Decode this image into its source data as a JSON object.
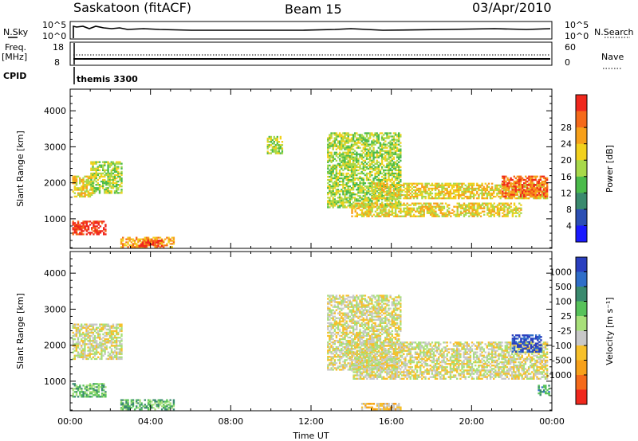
{
  "header": {
    "title": "Saskatoon (fitACF)",
    "beam": "Beam 15",
    "date": "03/Apr/2010"
  },
  "housekeeping": {
    "nsky_label": "N.Sky",
    "nsearch_label": "N.Search",
    "noise_ticks_left": [
      "10^5",
      "10^0"
    ],
    "noise_ticks_right": [
      "10^5",
      "10^0"
    ],
    "freq_label_top": "Freq.",
    "freq_label_bottom": "[MHz]",
    "freq_ticks": [
      "18",
      "8"
    ],
    "nave_label": "Nave",
    "nave_ticks": [
      "60",
      "0"
    ],
    "cpid_label": "CPID",
    "cpid_text": "themis 3300"
  },
  "chart_data": [
    {
      "type": "heatmap",
      "name": "power",
      "ylabel": "Slant Range [km]",
      "xlabel": "",
      "x_ticks": [
        "00:00",
        "04:00",
        "08:00",
        "12:00",
        "16:00",
        "20:00",
        "00:00"
      ],
      "y_ticks": [
        1000,
        2000,
        3000,
        4000
      ],
      "xlim_hours": [
        0,
        24
      ],
      "ylim_km": [
        180,
        4600
      ],
      "colorbar": {
        "label": "Power [dB]",
        "ticks": [
          "4",
          "8",
          "12",
          "16",
          "20",
          "24",
          "28"
        ],
        "colors": [
          "#1a1aff",
          "#2c4fb4",
          "#3a8a6e",
          "#4bbb4b",
          "#a8d94a",
          "#f2d11d",
          "#f7a01a",
          "#f56a1a",
          "#f0281d"
        ]
      },
      "regions": [
        {
          "t0": 0.1,
          "t1": 1.8,
          "r0": 550,
          "r1": 950,
          "level": 8
        },
        {
          "t0": 0.1,
          "t1": 1.2,
          "r0": 1600,
          "r1": 2200,
          "level": 5
        },
        {
          "t0": 1.0,
          "t1": 2.6,
          "r0": 1700,
          "r1": 2600,
          "level": 4
        },
        {
          "t0": 2.5,
          "t1": 5.2,
          "r0": 200,
          "r1": 500,
          "level": 6
        },
        {
          "t0": 3.4,
          "t1": 4.6,
          "r0": 220,
          "r1": 420,
          "level": 8
        },
        {
          "t0": 12.8,
          "t1": 16.5,
          "r0": 1300,
          "r1": 3400,
          "level": 4
        },
        {
          "t0": 14.0,
          "t1": 22.5,
          "r0": 1050,
          "r1": 1450,
          "level": 5
        },
        {
          "t0": 15.0,
          "t1": 23.8,
          "r0": 1550,
          "r1": 2000,
          "level": 5
        },
        {
          "t0": 21.5,
          "t1": 23.8,
          "r0": 1600,
          "r1": 2200,
          "level": 7
        },
        {
          "t0": 9.8,
          "t1": 10.6,
          "r0": 2800,
          "r1": 3300,
          "level": 4
        }
      ]
    },
    {
      "type": "heatmap",
      "name": "velocity",
      "ylabel": "Slant Range [km]",
      "xlabel": "Time UT",
      "x_ticks": [
        "00:00",
        "04:00",
        "08:00",
        "12:00",
        "16:00",
        "20:00",
        "00:00"
      ],
      "y_ticks": [
        1000,
        2000,
        3000,
        4000
      ],
      "xlim_hours": [
        0,
        24
      ],
      "ylim_km": [
        180,
        4600
      ],
      "colorbar": {
        "label": "Velocity [m s⁻¹]",
        "ticks": [
          "1000",
          "500",
          "100",
          "25",
          "-25",
          "-100",
          "-500",
          "-1000"
        ],
        "colors": [
          "#2a3fbf",
          "#2f6ec9",
          "#3a8a6e",
          "#57c25a",
          "#a8e07a",
          "#c8c8c8",
          "#f7c02a",
          "#f7a01a",
          "#f56a1a",
          "#f0281d"
        ]
      },
      "regions": [
        {
          "t0": 0.1,
          "t1": 1.8,
          "r0": 550,
          "r1": 950,
          "level": 3
        },
        {
          "t0": 0.1,
          "t1": 2.6,
          "r0": 1600,
          "r1": 2600,
          "level": 5
        },
        {
          "t0": 2.5,
          "t1": 5.2,
          "r0": 200,
          "r1": 500,
          "level": 3
        },
        {
          "t0": 12.8,
          "t1": 16.5,
          "r0": 1300,
          "r1": 3400,
          "level": 5
        },
        {
          "t0": 14.0,
          "t1": 23.8,
          "r0": 1050,
          "r1": 2100,
          "level": 5
        },
        {
          "t0": 22.0,
          "t1": 23.5,
          "r0": 1800,
          "r1": 2300,
          "level": 0
        },
        {
          "t0": 23.3,
          "t1": 23.9,
          "r0": 600,
          "r1": 900,
          "level": 2
        },
        {
          "t0": 14.5,
          "t1": 16.5,
          "r0": 200,
          "r1": 400,
          "level": 6
        }
      ]
    }
  ]
}
